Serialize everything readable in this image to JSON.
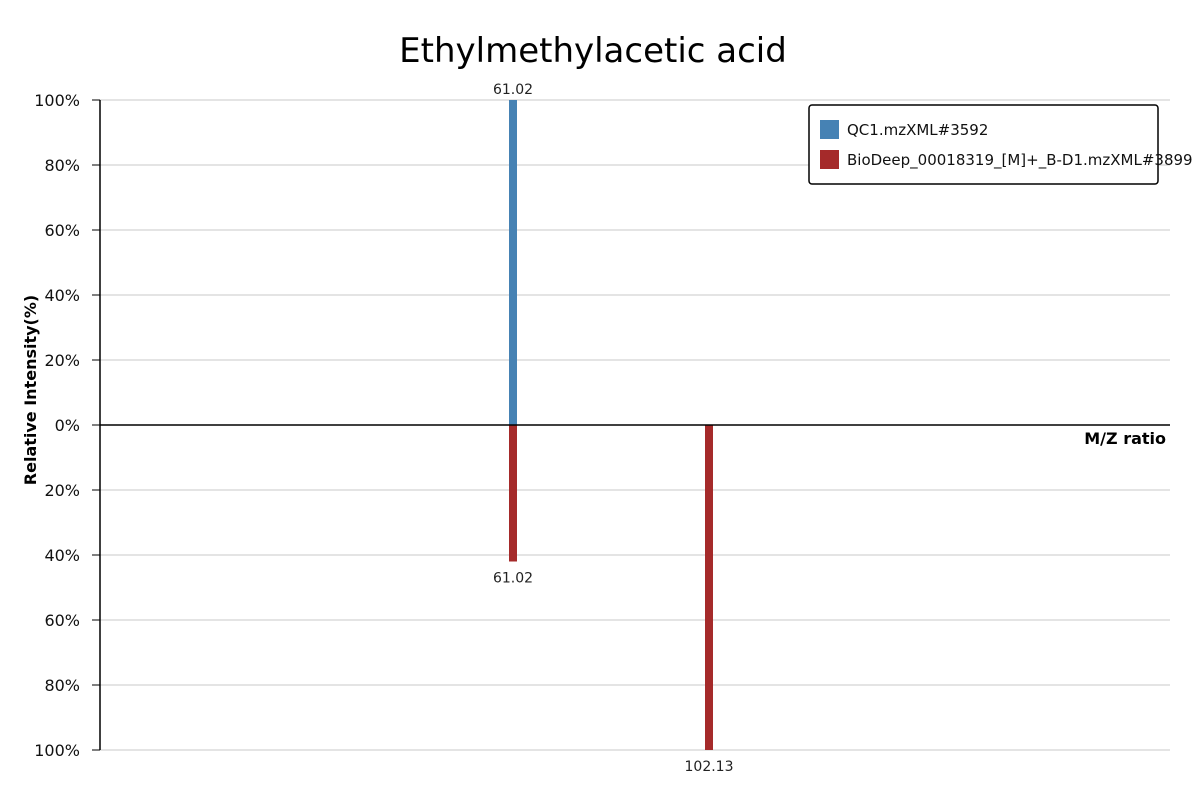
{
  "chart_data": {
    "type": "bar",
    "subtype": "mirror-mass-spectrum",
    "title": "Ethylmethylacetic acid",
    "xlabel": "M/Z ratio",
    "ylabel": "Relative Intensity(%)",
    "ylim": [
      -100,
      100
    ],
    "y_ticks": [
      "100%",
      "80%",
      "60%",
      "40%",
      "20%",
      "0%",
      "20%",
      "40%",
      "60%",
      "80%",
      "100%"
    ],
    "y_tick_values": [
      100,
      80,
      60,
      40,
      20,
      0,
      -20,
      -40,
      -60,
      -80,
      -100
    ],
    "grid": true,
    "legend_position": "top-right",
    "series": [
      {
        "name": "QC1.mzXML#3592",
        "color": "#4682b4",
        "direction": "up",
        "peaks": [
          {
            "mz": 61.02,
            "intensity": 100,
            "label": "61.02"
          }
        ]
      },
      {
        "name": "BioDeep_00018319_[M]+_B-D1.mzXML#3899",
        "color": "#a52a2a",
        "direction": "down",
        "peaks": [
          {
            "mz": 61.02,
            "intensity": 42,
            "label": "61.02"
          },
          {
            "mz": 102.13,
            "intensity": 100,
            "label": "102.13"
          }
        ]
      }
    ]
  }
}
